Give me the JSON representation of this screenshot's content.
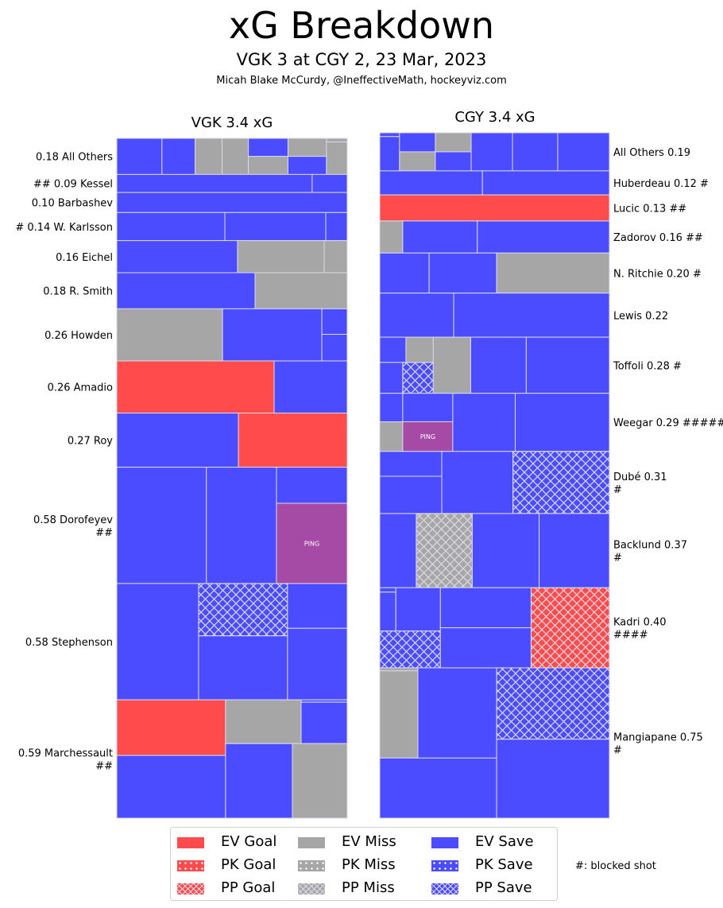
{
  "header": {
    "title": "xG Breakdown",
    "subtitle": "VGK 3 at CGY 2, 23 Mar, 2023",
    "credit": "Micah Blake McCurdy, @IneffectiveMath, hockeyviz.com"
  },
  "colors": {
    "goal": "#ff4b4b",
    "miss": "#a6a6a6",
    "save": "#4b4bff",
    "penalty_drawn": "#a54ba5",
    "edge": "#d9d9e8"
  },
  "legend": {
    "items": [
      {
        "label": "EV Goal",
        "kind": "goal",
        "strength": "EV"
      },
      {
        "label": "PK Goal",
        "kind": "goal",
        "strength": "PK"
      },
      {
        "label": "PP Goal",
        "kind": "goal",
        "strength": "PP"
      },
      {
        "label": "EV Miss",
        "kind": "miss",
        "strength": "EV"
      },
      {
        "label": "PK Miss",
        "kind": "miss",
        "strength": "PK"
      },
      {
        "label": "PP Miss",
        "kind": "miss",
        "strength": "PP"
      },
      {
        "label": "EV Save",
        "kind": "save",
        "strength": "EV"
      },
      {
        "label": "PK Save",
        "kind": "save",
        "strength": "PK"
      },
      {
        "label": "PP Save",
        "kind": "save",
        "strength": "PP"
      }
    ],
    "note": "#: blocked shot"
  },
  "chart_data": [
    {
      "type": "treemap",
      "title": "VGK 3.4 xG",
      "team": "VGK",
      "total_xg": 3.4,
      "label_side": "left",
      "rows": [
        {
          "label": "0.18 All Others",
          "blocked": "",
          "xg": 0.18,
          "tiles": [
            [
              "save",
              "EV",
              0,
              0,
              0.196,
              1
            ],
            [
              "save",
              "EV",
              0.196,
              0,
              0.34,
              1
            ],
            [
              "miss",
              "EV",
              0.34,
              0,
              0.457,
              1
            ],
            [
              "miss",
              "EV",
              0.457,
              0,
              0.571,
              1
            ],
            [
              "save",
              "EV",
              0.571,
              0,
              0.743,
              0.5
            ],
            [
              "miss",
              "EV",
              0.571,
              0.5,
              0.743,
              1
            ],
            [
              "miss",
              "EV",
              0.743,
              0,
              0.91,
              0.5
            ],
            [
              "save",
              "EV",
              0.743,
              0.5,
              0.91,
              1
            ],
            [
              "miss",
              "EV",
              0.91,
              0,
              1,
              0.1
            ],
            [
              "miss",
              "EV",
              0.91,
              0.1,
              1,
              1
            ]
          ]
        },
        {
          "label": "0.09 Kessel",
          "blocked": "##",
          "xg": 0.09,
          "tiles": [
            [
              "save",
              "EV",
              0,
              0,
              0.848,
              1
            ],
            [
              "save",
              "EV",
              0.848,
              0,
              1,
              1
            ]
          ]
        },
        {
          "label": "0.10 Barbashev",
          "blocked": "",
          "xg": 0.1,
          "tiles": [
            [
              "save",
              "EV",
              0,
              0,
              1,
              1
            ]
          ]
        },
        {
          "label": "0.14 W. Karlsson",
          "blocked": "#",
          "xg": 0.14,
          "tiles": [
            [
              "save",
              "EV",
              0,
              0,
              0.469,
              1
            ],
            [
              "save",
              "EV",
              0.469,
              0,
              0.907,
              1
            ],
            [
              "save",
              "EV",
              0.907,
              0,
              1,
              1
            ]
          ]
        },
        {
          "label": "0.16 Eichel",
          "blocked": "",
          "xg": 0.16,
          "tiles": [
            [
              "save",
              "EV",
              0,
              0,
              0.524,
              1
            ],
            [
              "miss",
              "EV",
              0.524,
              0,
              0.9,
              1
            ],
            [
              "miss",
              "EV",
              0.9,
              0,
              1,
              1
            ]
          ]
        },
        {
          "label": "0.18 R. Smith",
          "blocked": "",
          "xg": 0.18,
          "tiles": [
            [
              "save",
              "EV",
              0,
              0,
              0.6,
              1
            ],
            [
              "miss",
              "EV",
              0.6,
              0,
              1,
              1
            ]
          ]
        },
        {
          "label": "0.26 Howden",
          "blocked": "",
          "xg": 0.26,
          "tiles": [
            [
              "miss",
              "EV",
              0,
              0,
              0.459,
              1
            ],
            [
              "save",
              "EV",
              0.459,
              0,
              0.89,
              1
            ],
            [
              "save",
              "EV",
              0.89,
              0,
              1,
              0.49
            ],
            [
              "save",
              "EV",
              0.89,
              0.49,
              1,
              1
            ]
          ]
        },
        {
          "label": "0.26 Amadio",
          "blocked": "",
          "xg": 0.26,
          "tiles": [
            [
              "goal",
              "EV",
              0,
              0,
              0.683,
              1
            ],
            [
              "save",
              "EV",
              0.683,
              0,
              1,
              1
            ]
          ]
        },
        {
          "label": "0.27 Roy",
          "blocked": "",
          "xg": 0.27,
          "tiles": [
            [
              "save",
              "EV",
              0,
              0,
              0.528,
              1
            ],
            [
              "goal",
              "EV",
              0.528,
              0,
              1,
              1
            ]
          ]
        },
        {
          "label": "0.58 Dorofeyev",
          "blocked": "##",
          "xg": 0.58,
          "tiles": [
            [
              "save",
              "EV",
              0,
              0,
              0.389,
              1
            ],
            [
              "save",
              "EV",
              0.389,
              0,
              0.693,
              1
            ],
            [
              "save",
              "EV",
              0.693,
              0,
              1,
              0.31
            ],
            [
              "penalty",
              "EV",
              0.693,
              0.31,
              1,
              1,
              "PING"
            ]
          ]
        },
        {
          "label": "0.58 Stephenson",
          "blocked": "",
          "xg": 0.58,
          "tiles": [
            [
              "save",
              "EV",
              0,
              0,
              0.355,
              1
            ],
            [
              "save",
              "PP",
              0.355,
              0,
              0.741,
              0.45
            ],
            [
              "save",
              "EV",
              0.355,
              0.45,
              0.741,
              1
            ],
            [
              "save",
              "EV",
              0.741,
              0,
              1,
              0.385
            ],
            [
              "save",
              "EV",
              0.741,
              0.385,
              1,
              1
            ]
          ]
        },
        {
          "label": "0.59 Marchessault",
          "blocked": "##",
          "xg": 0.59,
          "tiles": [
            [
              "goal",
              "EV",
              0,
              0,
              0.472,
              0.47
            ],
            [
              "save",
              "EV",
              0,
              0.47,
              0.472,
              1
            ],
            [
              "miss",
              "EV",
              0.472,
              0,
              0.8,
              0.37
            ],
            [
              "save",
              "EV",
              0.8,
              0,
              1,
              0.02
            ],
            [
              "save",
              "EV",
              0.8,
              0.02,
              1,
              0.37
            ],
            [
              "save",
              "EV",
              0.472,
              0.37,
              0.762,
              1
            ],
            [
              "miss",
              "EV",
              0.762,
              0.37,
              1,
              1
            ]
          ]
        }
      ]
    },
    {
      "type": "treemap",
      "title": "CGY 3.4 xG",
      "team": "CGY",
      "total_xg": 3.4,
      "label_side": "right",
      "rows": [
        {
          "label": "All Others 0.19",
          "blocked": "",
          "xg": 0.19,
          "tiles": [
            [
              "save",
              "EV",
              0,
              0,
              0.086,
              0.1
            ],
            [
              "save",
              "EV",
              0,
              0.1,
              0.086,
              1
            ],
            [
              "save",
              "EV",
              0.086,
              0,
              0.242,
              0.5
            ],
            [
              "miss",
              "EV",
              0.086,
              0.5,
              0.242,
              1
            ],
            [
              "miss",
              "EV",
              0.242,
              0,
              0.398,
              0.5
            ],
            [
              "save",
              "EV",
              0.242,
              0.5,
              0.398,
              1
            ],
            [
              "save",
              "EV",
              0.398,
              0,
              0.578,
              1
            ],
            [
              "save",
              "EV",
              0.578,
              0,
              0.775,
              1
            ],
            [
              "save",
              "EV",
              0.775,
              0,
              1,
              1
            ]
          ]
        },
        {
          "label": "Huberdeau 0.12",
          "blocked": "#",
          "xg": 0.12,
          "tiles": [
            [
              "save",
              "EV",
              0,
              0,
              0.447,
              1
            ],
            [
              "save",
              "EV",
              0.447,
              0,
              1,
              1
            ]
          ]
        },
        {
          "label": "Lucic 0.13",
          "blocked": "##",
          "xg": 0.13,
          "tiles": [
            [
              "goal",
              "EV",
              0,
              0,
              1,
              1
            ]
          ]
        },
        {
          "label": "Zadorov 0.16",
          "blocked": "##",
          "xg": 0.16,
          "tiles": [
            [
              "miss",
              "EV",
              0,
              0,
              0.1,
              1
            ],
            [
              "save",
              "EV",
              0.1,
              0,
              0.425,
              1
            ],
            [
              "save",
              "EV",
              0.425,
              0,
              1,
              1
            ]
          ]
        },
        {
          "label": "N. Ritchie 0.20",
          "blocked": "#",
          "xg": 0.2,
          "tiles": [
            [
              "save",
              "EV",
              0,
              0,
              0.215,
              1
            ],
            [
              "save",
              "EV",
              0.215,
              0,
              0.509,
              1
            ],
            [
              "miss",
              "EV",
              0.509,
              0,
              1,
              1
            ]
          ]
        },
        {
          "label": "Lewis 0.22",
          "blocked": "",
          "xg": 0.22,
          "tiles": [
            [
              "save",
              "EV",
              0,
              0,
              0.322,
              1
            ],
            [
              "save",
              "EV",
              0.322,
              0,
              1,
              1
            ]
          ]
        },
        {
          "label": "Toffoli 0.28",
          "blocked": "#",
          "xg": 0.28,
          "tiles": [
            [
              "save",
              "EV",
              0,
              0,
              0.114,
              0.45
            ],
            [
              "miss",
              "EV",
              0.114,
              0,
              0.233,
              0.45
            ],
            [
              "save",
              "EV",
              0,
              0.45,
              0.1,
              1
            ],
            [
              "save",
              "PP",
              0.1,
              0.45,
              0.233,
              1
            ],
            [
              "miss",
              "EV",
              0.233,
              0,
              0.396,
              1
            ],
            [
              "save",
              "EV",
              0.396,
              0,
              0.638,
              1
            ],
            [
              "save",
              "EV",
              0.638,
              0,
              1,
              1
            ]
          ]
        },
        {
          "label": "Weegar 0.29",
          "blocked": "#####",
          "xg": 0.29,
          "tiles": [
            [
              "save",
              "EV",
              0,
              0,
              0.1,
              0.49
            ],
            [
              "save",
              "EV",
              0.1,
              0,
              0.318,
              0.49
            ],
            [
              "miss",
              "EV",
              0,
              0.49,
              0.1,
              1
            ],
            [
              "penalty",
              "EV",
              0.1,
              0.49,
              0.318,
              1,
              "PING"
            ],
            [
              "save",
              "EV",
              0.318,
              0,
              0.59,
              1
            ],
            [
              "save",
              "EV",
              0.59,
              0,
              1,
              1
            ]
          ]
        },
        {
          "label": "Dubé 0.31",
          "blocked": "#",
          "xg": 0.31,
          "tiles": [
            [
              "save",
              "EV",
              0,
              0,
              0.27,
              0.4
            ],
            [
              "save",
              "EV",
              0,
              0.4,
              0.27,
              1
            ],
            [
              "save",
              "EV",
              0.27,
              0,
              0.58,
              1
            ],
            [
              "save",
              "PP",
              0.58,
              0,
              1,
              1
            ]
          ]
        },
        {
          "label": "Backlund 0.37",
          "blocked": "#",
          "xg": 0.37,
          "tiles": [
            [
              "save",
              "EV",
              0,
              0,
              0.159,
              1
            ],
            [
              "miss",
              "PP",
              0.159,
              0,
              0.403,
              1
            ],
            [
              "save",
              "EV",
              0.403,
              0,
              0.694,
              1
            ],
            [
              "save",
              "EV",
              0.694,
              0,
              1,
              1
            ]
          ]
        },
        {
          "label": "Kadri 0.40",
          "blocked": "####",
          "xg": 0.4,
          "tiles": [
            [
              "save",
              "EV",
              0,
              0,
              0.07,
              0.055
            ],
            [
              "save",
              "EV",
              0,
              0.055,
              0.07,
              0.54
            ],
            [
              "save",
              "EV",
              0.07,
              0,
              0.264,
              0.54
            ],
            [
              "save",
              "PP",
              0,
              0.54,
              0.264,
              1
            ],
            [
              "save",
              "EV",
              0.264,
              0,
              0.659,
              0.5
            ],
            [
              "save",
              "EV",
              0.264,
              0.5,
              0.659,
              1
            ],
            [
              "goal",
              "PP",
              0.659,
              0,
              1,
              1
            ]
          ]
        },
        {
          "label": "Mangiapane 0.75",
          "blocked": "#",
          "xg": 0.75,
          "tiles": [
            [
              "miss",
              "EV",
              0,
              0,
              0.166,
              0.02
            ],
            [
              "miss",
              "EV",
              0,
              0.02,
              0.166,
              0.6
            ],
            [
              "save",
              "EV",
              0.166,
              0,
              0.509,
              0.6
            ],
            [
              "save",
              "EV",
              0,
              0.6,
              0.509,
              1
            ],
            [
              "save",
              "PP",
              0.509,
              0,
              1,
              0.475
            ],
            [
              "save",
              "EV",
              0.509,
              0.475,
              1,
              1
            ]
          ]
        }
      ]
    }
  ]
}
